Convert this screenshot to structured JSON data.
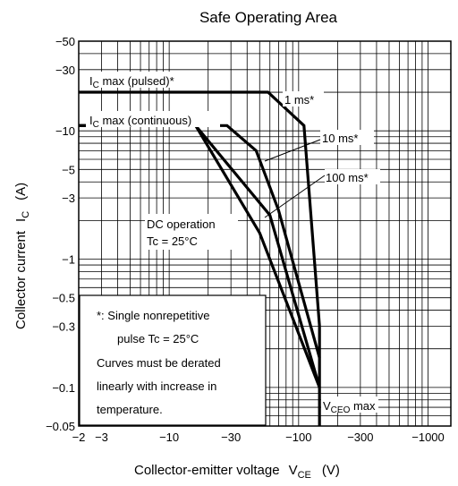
{
  "chart_data": {
    "type": "line",
    "title": "Safe Operating Area",
    "xlabel": "Collector-emitter voltage",
    "xlabel_sym": "V",
    "xlabel_sub": "CE",
    "xlabel_unit": "(V)",
    "ylabel": "Collector current",
    "ylabel_sym": "I",
    "ylabel_sub": "C",
    "ylabel_unit": "(A)",
    "x_scale": "log",
    "y_scale": "log",
    "xlim": [
      -2,
      -1500
    ],
    "ylim": [
      -0.05,
      -50
    ],
    "x_ticks": [
      {
        "v": -2,
        "label": "−2"
      },
      {
        "v": -3,
        "label": "−3"
      },
      {
        "v": -10,
        "label": "−10"
      },
      {
        "v": -30,
        "label": "−30"
      },
      {
        "v": -100,
        "label": "−100"
      },
      {
        "v": -300,
        "label": "−300"
      },
      {
        "v": -1000,
        "label": "−1000"
      }
    ],
    "y_ticks": [
      {
        "v": -50,
        "label": "−50"
      },
      {
        "v": -30,
        "label": "−30"
      },
      {
        "v": -10,
        "label": "−10"
      },
      {
        "v": -5,
        "label": "−5"
      },
      {
        "v": -3,
        "label": "−3"
      },
      {
        "v": -1,
        "label": "−1"
      },
      {
        "v": -0.5,
        "label": "−0.5"
      },
      {
        "v": -0.3,
        "label": "−0.3"
      },
      {
        "v": -0.1,
        "label": "−0.1"
      },
      {
        "v": -0.05,
        "label": "−0.05"
      }
    ],
    "grid": true,
    "series": [
      {
        "name": "1 ms*",
        "points": [
          [
            -2,
            -20
          ],
          [
            -58,
            -20
          ],
          [
            -110,
            -11
          ],
          [
            -145,
            -0.3
          ]
        ]
      },
      {
        "name": "10 ms*",
        "points": [
          [
            -2,
            -11
          ],
          [
            -28,
            -11
          ],
          [
            -47,
            -7
          ],
          [
            -70,
            -2.4
          ],
          [
            -145,
            -0.17
          ]
        ]
      },
      {
        "name": "100 ms*",
        "points": [
          [
            -2,
            -11
          ],
          [
            -16,
            -11
          ],
          [
            -60,
            -2.2
          ],
          [
            -145,
            -0.1
          ]
        ]
      },
      {
        "name": "DC operation",
        "points": [
          [
            -2,
            -11
          ],
          [
            -16,
            -11
          ],
          [
            -50,
            -1.6
          ],
          [
            -145,
            -0.1
          ]
        ]
      }
    ],
    "vceo_max": -145,
    "annotations": {
      "ic_pulsed": {
        "pre": "I",
        "sub": "C",
        "post": " max (pulsed)*",
        "y": -20
      },
      "ic_cont": {
        "pre": "I",
        "sub": "C",
        "post": " max (continuous)",
        "y": -11
      },
      "dc_op": "DC operation",
      "tc": "Tc = 25°C",
      "label_1ms": "1 ms*",
      "label_10ms": "10 ms*",
      "label_100ms": "100 ms*",
      "vceo_pre": "V",
      "vceo_sub": "CEO",
      "vceo_post": " max"
    },
    "note": {
      "line1": "*:  Single nonrepetitive",
      "line2": "pulse    Tc = 25°C",
      "line3": "Curves must be derated",
      "line4": "linearly with increase in",
      "line5": "temperature."
    }
  }
}
